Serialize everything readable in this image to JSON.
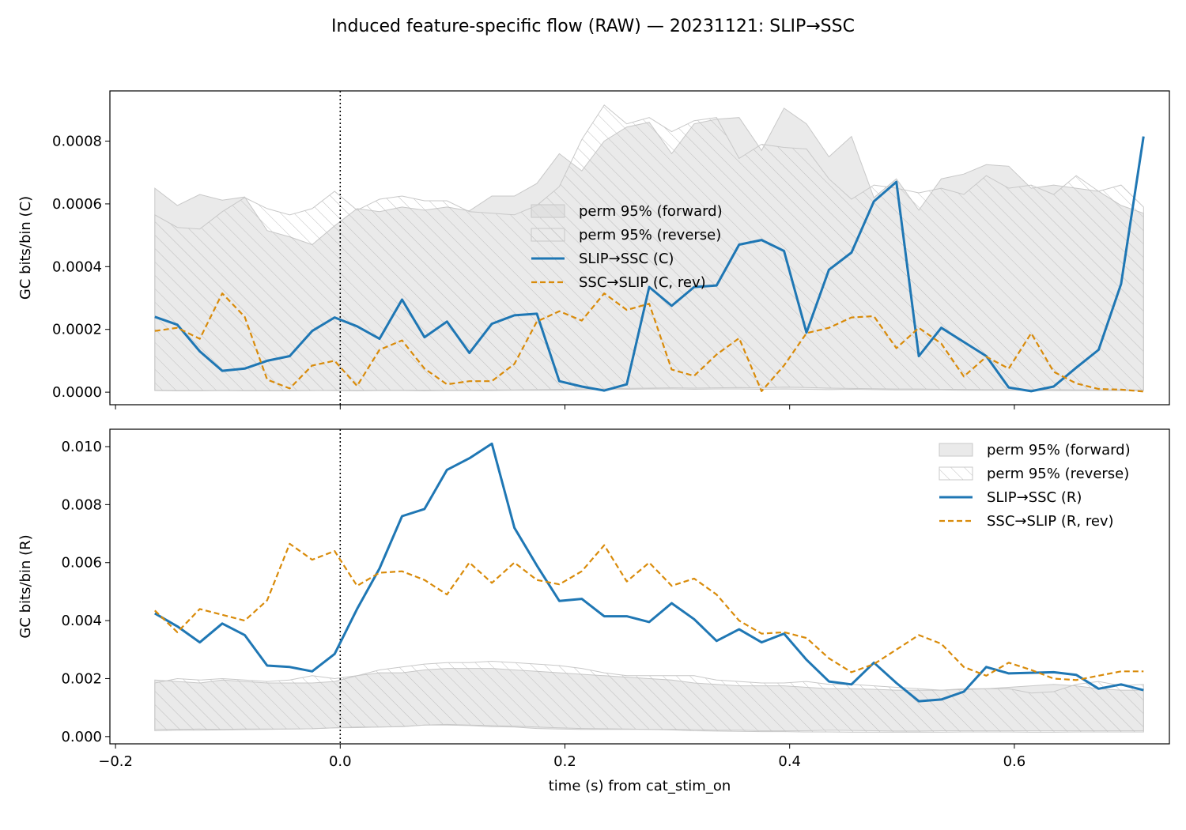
{
  "title": "Induced feature-specific flow (RAW) — 20231121: SLIP→SSC",
  "colors": {
    "forward": "#1f77b4",
    "reverse": "#d98b0a",
    "band_fill": "#d9d9d9",
    "band_edge": "#c8c8c8",
    "hatch": "#bdbdbd"
  },
  "chart_data": [
    {
      "type": "line",
      "panel": "top",
      "title": "",
      "xlabel": "",
      "ylabel": "GC bits/bin (C)",
      "xlim": [
        -0.205,
        0.738
      ],
      "ylim": [
        -4e-05,
        0.00096
      ],
      "xticks": [
        -0.2,
        0.0,
        0.2,
        0.4,
        0.6
      ],
      "xtick_labels_visible": false,
      "yticks": [
        0.0,
        0.0002,
        0.0004,
        0.0006,
        0.0008
      ],
      "ytick_labels": [
        "0.0000",
        "0.0002",
        "0.0004",
        "0.0006",
        "0.0008"
      ],
      "grid": false,
      "legend_position": "center",
      "vline_x": 0.0,
      "x": [
        -0.165,
        -0.145,
        -0.125,
        -0.105,
        -0.085,
        -0.065,
        -0.045,
        -0.025,
        -0.005,
        0.015,
        0.035,
        0.055,
        0.075,
        0.095,
        0.115,
        0.135,
        0.155,
        0.175,
        0.195,
        0.215,
        0.235,
        0.255,
        0.275,
        0.295,
        0.315,
        0.335,
        0.355,
        0.375,
        0.395,
        0.415,
        0.435,
        0.455,
        0.475,
        0.495,
        0.515,
        0.535,
        0.555,
        0.575,
        0.595,
        0.615,
        0.635,
        0.655,
        0.675,
        0.695,
        0.715
      ],
      "bands": [
        {
          "name": "perm 95% (forward)",
          "style": "solid",
          "lower": [
            5e-06,
            4e-06,
            4e-06,
            5e-06,
            4e-06,
            4e-06,
            4e-06,
            5e-06,
            5e-06,
            4e-06,
            5e-06,
            5e-06,
            4e-06,
            5e-06,
            5e-06,
            5e-06,
            6e-06,
            6e-06,
            6e-06,
            7e-06,
            8e-06,
            9e-06,
            1e-05,
            1e-05,
            9e-06,
            1e-05,
            1e-05,
            9e-06,
            1e-05,
            9e-06,
            8e-06,
            9e-06,
            8e-06,
            7e-06,
            7e-06,
            7e-06,
            6e-06,
            6e-06,
            6e-06,
            6e-06,
            5e-06,
            5e-06,
            5e-06,
            5e-06,
            5e-06
          ],
          "upper": [
            0.00065,
            0.000595,
            0.00063,
            0.000612,
            0.000622,
            0.000515,
            0.000495,
            0.00047,
            0.00053,
            0.000585,
            0.000575,
            0.00059,
            0.00058,
            0.00059,
            0.000578,
            0.000625,
            0.000625,
            0.000665,
            0.00076,
            0.000705,
            0.0008,
            0.000845,
            0.00086,
            0.00076,
            0.000855,
            0.00087,
            0.000875,
            0.00077,
            0.000905,
            0.000855,
            0.00075,
            0.000815,
            0.00062,
            0.00068,
            0.00058,
            0.00068,
            0.000695,
            0.000725,
            0.00072,
            0.00065,
            0.00066,
            0.00065,
            0.00064,
            0.000595,
            0.00057
          ]
        },
        {
          "name": "perm 95% (reverse)",
          "style": "hatch",
          "lower": [
            6e-06,
            5e-06,
            5e-06,
            5e-06,
            5e-06,
            5e-06,
            5e-06,
            5e-06,
            6e-06,
            5e-06,
            6e-06,
            6e-06,
            6e-06,
            6e-06,
            6e-06,
            7e-06,
            7e-06,
            8e-06,
            9e-06,
            1e-05,
            1.1e-05,
            1.2e-05,
            1.3e-05,
            1.4e-05,
            1.3e-05,
            1.4e-05,
            1.5e-05,
            1.4e-05,
            1.6e-05,
            1.5e-05,
            1.3e-05,
            1.2e-05,
            1.1e-05,
            1e-05,
            1e-05,
            9e-06,
            9e-06,
            8e-06,
            8e-06,
            8e-06,
            8e-06,
            7e-06,
            7e-06,
            7e-06,
            7e-06
          ],
          "upper": [
            0.000565,
            0.000525,
            0.00052,
            0.000575,
            0.00062,
            0.000585,
            0.000565,
            0.000585,
            0.00064,
            0.00058,
            0.000615,
            0.000625,
            0.00061,
            0.00061,
            0.000575,
            0.00057,
            0.000565,
            0.000595,
            0.000655,
            0.000805,
            0.000915,
            0.000855,
            0.000875,
            0.00083,
            0.000865,
            0.000875,
            0.000745,
            0.00079,
            0.00078,
            0.000775,
            0.00068,
            0.000615,
            0.00066,
            0.00065,
            0.000635,
            0.00065,
            0.00063,
            0.00069,
            0.00065,
            0.00066,
            0.00063,
            0.00069,
            0.00064,
            0.00066,
            0.00059
          ]
        }
      ],
      "series": [
        {
          "name": "SLIP→SSC (C)",
          "style": "solid",
          "values": [
            0.00024,
            0.000215,
            0.00013,
            6.8e-05,
            7.5e-05,
            0.0001,
            0.000115,
            0.000195,
            0.000238,
            0.00021,
            0.00017,
            0.000295,
            0.000175,
            0.000225,
            0.000125,
            0.000218,
            0.000245,
            0.00025,
            3.5e-05,
            1.8e-05,
            5e-06,
            2.5e-05,
            0.000335,
            0.000275,
            0.000335,
            0.00034,
            0.00047,
            0.000485,
            0.00045,
            0.00019,
            0.00039,
            0.000445,
            0.000608,
            0.00067,
            0.000115,
            0.000205,
            0.00016,
            0.000115,
            1.5e-05,
            3e-06,
            1.8e-05,
            7.8e-05,
            0.000135,
            0.000345,
            0.000815
          ]
        },
        {
          "name": "SSC→SLIP (C, rev)",
          "style": "dashed",
          "values": [
            0.000195,
            0.000205,
            0.00017,
            0.000315,
            0.00024,
            4e-05,
            1.2e-05,
            8.5e-05,
            0.0001,
            2e-05,
            0.000135,
            0.000165,
            7.5e-05,
            2.5e-05,
            3.5e-05,
            3.5e-05,
            9e-05,
            0.000225,
            0.000258,
            0.000228,
            0.000315,
            0.000262,
            0.000282,
            7.2e-05,
            5.2e-05,
            0.00012,
            0.000172,
            3e-06,
            8.5e-05,
            0.000188,
            0.000205,
            0.000238,
            0.000242,
            0.00014,
            0.000205,
            0.000155,
            5e-05,
            0.000113,
            7.5e-05,
            0.000188,
            6.5e-05,
            2.8e-05,
            1e-05,
            8e-06,
            2e-06
          ]
        }
      ]
    },
    {
      "type": "line",
      "panel": "bottom",
      "title": "",
      "xlabel": "time (s) from cat_stim_on",
      "ylabel": "GC bits/bin (R)",
      "xlim": [
        -0.205,
        0.738
      ],
      "ylim": [
        -0.00025,
        0.0106
      ],
      "xticks": [
        -0.2,
        0.0,
        0.2,
        0.4,
        0.6
      ],
      "xtick_labels": [
        "−0.2",
        "0.0",
        "0.2",
        "0.4",
        "0.6"
      ],
      "yticks": [
        0.0,
        0.002,
        0.004,
        0.006,
        0.008,
        0.01
      ],
      "ytick_labels": [
        "0.000",
        "0.002",
        "0.004",
        "0.006",
        "0.008",
        "0.010"
      ],
      "grid": false,
      "legend_position": "upper right",
      "vline_x": 0.0,
      "x": [
        -0.165,
        -0.145,
        -0.125,
        -0.105,
        -0.085,
        -0.065,
        -0.045,
        -0.025,
        -0.005,
        0.015,
        0.035,
        0.055,
        0.075,
        0.095,
        0.115,
        0.135,
        0.155,
        0.175,
        0.195,
        0.215,
        0.235,
        0.255,
        0.275,
        0.295,
        0.315,
        0.335,
        0.355,
        0.375,
        0.395,
        0.415,
        0.435,
        0.455,
        0.475,
        0.495,
        0.515,
        0.535,
        0.555,
        0.575,
        0.595,
        0.615,
        0.635,
        0.655,
        0.675,
        0.695,
        0.715
      ],
      "bands": [
        {
          "name": "perm 95% (forward)",
          "style": "solid",
          "lower": [
            0.00025,
            0.00025,
            0.00026,
            0.00025,
            0.00026,
            0.00026,
            0.00026,
            0.00027,
            0.0003,
            0.00033,
            0.00033,
            0.00034,
            0.0004,
            0.0004,
            0.00038,
            0.00034,
            0.00033,
            0.00028,
            0.00026,
            0.00025,
            0.00025,
            0.00025,
            0.00025,
            0.00025,
            0.00024,
            0.00022,
            0.00022,
            0.0002,
            0.0002,
            0.0002,
            0.00022,
            0.00021,
            0.0002,
            0.00019,
            0.00019,
            0.0002,
            0.0002,
            0.0002,
            0.0002,
            0.0002,
            0.0002,
            0.0002,
            0.0002,
            0.0002,
            0.0002
          ],
          "upper": [
            0.00195,
            0.0019,
            0.00185,
            0.00195,
            0.0019,
            0.00185,
            0.00185,
            0.00185,
            0.0019,
            0.0021,
            0.0022,
            0.0022,
            0.0023,
            0.00235,
            0.00235,
            0.00235,
            0.0023,
            0.00225,
            0.0022,
            0.00215,
            0.0021,
            0.00205,
            0.002,
            0.00195,
            0.00185,
            0.0018,
            0.00175,
            0.00175,
            0.00175,
            0.0017,
            0.00165,
            0.00165,
            0.00163,
            0.0016,
            0.0016,
            0.0016,
            0.00162,
            0.00165,
            0.0017,
            0.00175,
            0.0018,
            0.00175,
            0.00165,
            0.0016,
            0.0016
          ]
        },
        {
          "name": "perm 95% (reverse)",
          "style": "hatch",
          "lower": [
            0.0002,
            0.00022,
            0.00022,
            0.00023,
            0.00024,
            0.00025,
            0.00026,
            0.00027,
            0.0003,
            0.00031,
            0.00033,
            0.00035,
            0.0004,
            0.00042,
            0.0004,
            0.00038,
            0.00036,
            0.00033,
            0.0003,
            0.00028,
            0.00027,
            0.00026,
            0.00025,
            0.00023,
            0.0002,
            0.00019,
            0.00018,
            0.00017,
            0.00017,
            0.00016,
            0.00016,
            0.00015,
            0.00015,
            0.00015,
            0.00015,
            0.00015,
            0.00016,
            0.00016,
            0.00016,
            0.00015,
            0.00015,
            0.00016,
            0.00016,
            0.00016,
            0.00016
          ],
          "upper": [
            0.00185,
            0.002,
            0.00195,
            0.002,
            0.00195,
            0.0019,
            0.00195,
            0.0021,
            0.002,
            0.0021,
            0.0023,
            0.0024,
            0.0025,
            0.00255,
            0.00255,
            0.0026,
            0.00255,
            0.0025,
            0.00245,
            0.00235,
            0.0022,
            0.0021,
            0.0021,
            0.0021,
            0.0021,
            0.00195,
            0.0019,
            0.00185,
            0.00185,
            0.0019,
            0.0018,
            0.0018,
            0.00175,
            0.0017,
            0.00165,
            0.0016,
            0.00165,
            0.00165,
            0.00165,
            0.0015,
            0.00155,
            0.0018,
            0.0019,
            0.00175,
            0.0018
          ]
        }
      ],
      "series": [
        {
          "name": "SLIP→SSC (R)",
          "style": "solid",
          "values": [
            0.00425,
            0.0038,
            0.00325,
            0.0039,
            0.0035,
            0.00245,
            0.0024,
            0.00225,
            0.00285,
            0.0044,
            0.0058,
            0.0076,
            0.00785,
            0.0092,
            0.0096,
            0.0101,
            0.0072,
            0.0059,
            0.00468,
            0.00475,
            0.00415,
            0.00415,
            0.00395,
            0.0046,
            0.00405,
            0.0033,
            0.0037,
            0.00325,
            0.00355,
            0.00265,
            0.0019,
            0.0018,
            0.00255,
            0.00185,
            0.00122,
            0.00128,
            0.00155,
            0.0024,
            0.00218,
            0.0022,
            0.00222,
            0.00213,
            0.00165,
            0.0018,
            0.0016
          ]
        },
        {
          "name": "SSC→SLIP (R, rev)",
          "style": "dashed",
          "values": [
            0.00435,
            0.0036,
            0.0044,
            0.0042,
            0.004,
            0.0047,
            0.00665,
            0.0061,
            0.0064,
            0.0052,
            0.00565,
            0.0057,
            0.0054,
            0.0049,
            0.006,
            0.0053,
            0.006,
            0.0054,
            0.00525,
            0.0057,
            0.0066,
            0.00535,
            0.006,
            0.0052,
            0.00545,
            0.0049,
            0.004,
            0.00355,
            0.0036,
            0.0034,
            0.0027,
            0.00222,
            0.0025,
            0.003,
            0.0035,
            0.0032,
            0.0024,
            0.0021,
            0.00255,
            0.0023,
            0.002,
            0.00195,
            0.0021,
            0.00225,
            0.00225
          ]
        }
      ]
    }
  ]
}
